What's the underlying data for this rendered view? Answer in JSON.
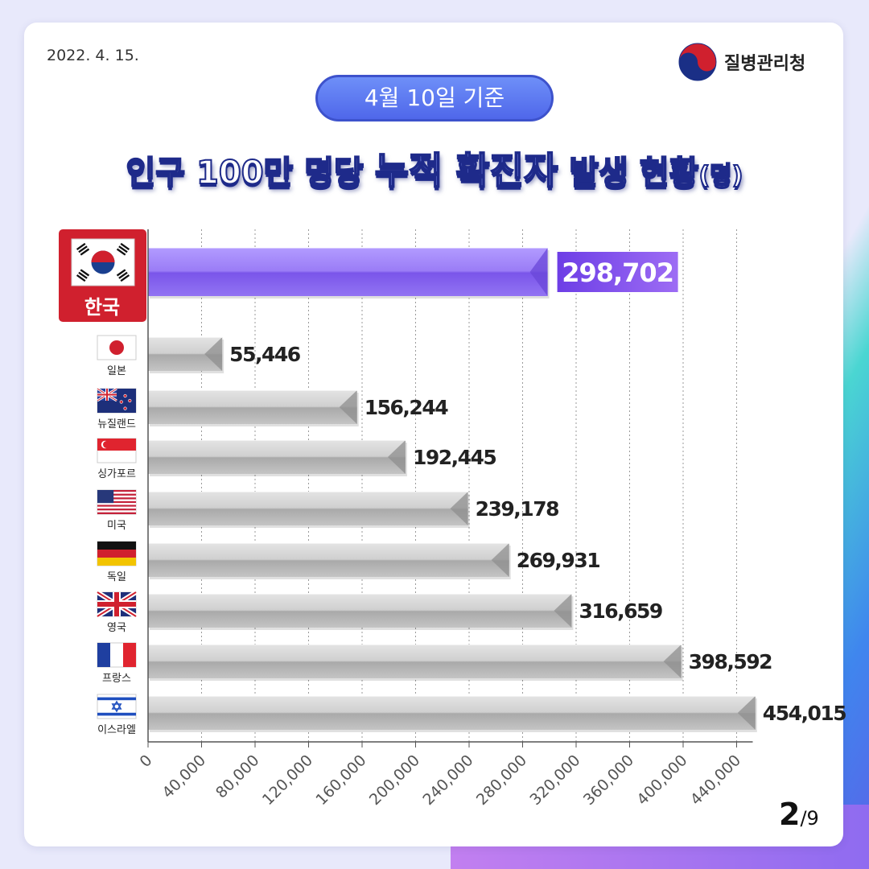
{
  "header": {
    "date": "2022. 4. 15.",
    "agency": "질병관리청",
    "basis": "4월 10일 기준",
    "title_pre": "인구 100만 명당 ",
    "title_highlight": "누적 확진자",
    "title_post": " 발생 현황",
    "title_unit": "(명)"
  },
  "pager": {
    "current": "2",
    "total": "/9"
  },
  "colors": {
    "highlight_bar": "#8a5cf0",
    "bar": "#bfbfbf",
    "korea_badge": "#d0202e",
    "title_text": "#1e2a8a"
  },
  "chart_data": {
    "type": "bar",
    "orientation": "horizontal",
    "categories": [
      "한국",
      "일본",
      "뉴질랜드",
      "싱가포르",
      "미국",
      "독일",
      "영국",
      "프랑스",
      "이스라엘"
    ],
    "values": [
      298702,
      55446,
      156244,
      192445,
      239178,
      269931,
      316659,
      398592,
      454015
    ],
    "value_labels": [
      "298,702",
      "55,446",
      "156,244",
      "192,445",
      "239,178",
      "269,931",
      "316,659",
      "398,592",
      "454,015"
    ],
    "highlight_index": 0,
    "flags": [
      "korea-flag-icon",
      "japan-flag-icon",
      "new-zealand-flag-icon",
      "singapore-flag-icon",
      "usa-flag-icon",
      "germany-flag-icon",
      "uk-flag-icon",
      "france-flag-icon",
      "israel-flag-icon"
    ],
    "xticks": [
      0,
      40000,
      80000,
      120000,
      160000,
      200000,
      240000,
      280000,
      320000,
      360000,
      400000,
      440000
    ],
    "xtick_labels": [
      "0",
      "40,000",
      "80,000",
      "120,000",
      "160,000",
      "200,000",
      "240,000",
      "280,000",
      "320,000",
      "360,000",
      "400,000",
      "440,000"
    ],
    "xlim": [
      0,
      440000
    ],
    "grid": true
  }
}
